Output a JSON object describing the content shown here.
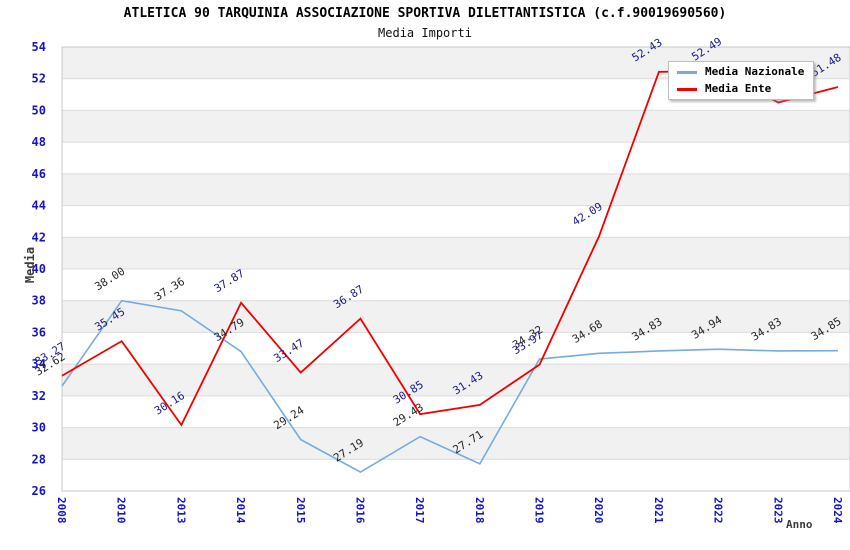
{
  "chart_data": {
    "type": "line",
    "title": "ATLETICA 90 TARQUINIA ASSOCIAZIONE SPORTIVA DILETTANTISTICA (c.f.90019690560)",
    "subtitle": "Media Importi",
    "xlabel": "Anno",
    "ylabel": "Media",
    "ylim": [
      26,
      54
    ],
    "ytick_step": 2,
    "grid": "horizontal-lines-with-alternating-bands",
    "legend_position": "top-right",
    "categories": [
      "2008",
      "2010",
      "2013",
      "2014",
      "2015",
      "2016",
      "2017",
      "2018",
      "2019",
      "2020",
      "2021",
      "2022",
      "2023",
      "2024"
    ],
    "series": [
      {
        "name": "Media Nazionale",
        "color": "#76ABDF",
        "label_color": "#262626",
        "values": [
          32.62,
          38.0,
          37.36,
          34.79,
          29.24,
          27.19,
          29.43,
          27.71,
          34.32,
          34.68,
          34.83,
          34.94,
          34.83,
          34.85
        ],
        "labels": [
          "32.62",
          "38.00",
          "37.36",
          "34.79",
          "29.24",
          "27.19",
          "29.43",
          "27.71",
          "34.32",
          "34.68",
          "34.83",
          "34.94",
          "34.83",
          "34.85"
        ]
      },
      {
        "name": "Media Ente",
        "color": "#F20000",
        "label_color": "#19198C",
        "values": [
          33.27,
          35.45,
          30.16,
          37.87,
          33.47,
          36.87,
          30.85,
          31.43,
          33.97,
          42.09,
          52.43,
          52.49,
          50.5,
          51.48
        ],
        "labels": [
          "33.27",
          "35.45",
          "30.16",
          "37.87",
          "33.47",
          "36.87",
          "30.85",
          "31.43",
          "33.97",
          "42.09",
          "52.43",
          "52.49",
          null,
          "51.48"
        ]
      }
    ],
    "colors": {
      "axis_tick_label": "#1515C8",
      "band_fill": "#F1F1F1",
      "grid_line": "#DBDBDB",
      "plot_border": "#C8C8C8",
      "axis_title": "#3C3C3C",
      "title_color": "#000000"
    }
  }
}
